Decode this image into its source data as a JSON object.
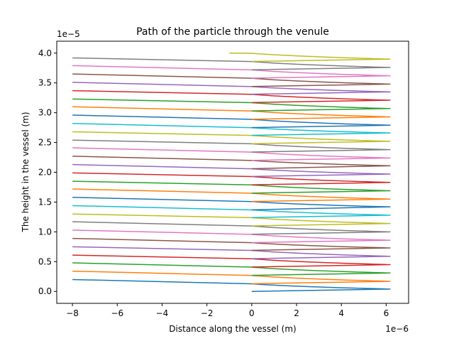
{
  "chart_data": {
    "type": "line",
    "title": "Path of the particle through the venule",
    "xlabel": "Distance along the vessel (m)",
    "ylabel": "The height in the vessel (m)",
    "x_offset_label": "1e−6",
    "y_offset_label": "1e−5",
    "xlim": [
      -8.7,
      7.0
    ],
    "ylim": [
      -0.2,
      4.2
    ],
    "x_ticks": [
      -8,
      -6,
      -4,
      -2,
      0,
      2,
      4,
      6
    ],
    "x_tick_labels": [
      "−8",
      "−6",
      "−4",
      "−2",
      "0",
      "2",
      "4",
      "6"
    ],
    "y_ticks": [
      0.0,
      0.5,
      1.0,
      1.5,
      2.0,
      2.5,
      3.0,
      3.5,
      4.0
    ],
    "y_tick_labels": [
      "0.0",
      "0.5",
      "1.0",
      "1.5",
      "2.0",
      "2.5",
      "3.0",
      "3.5",
      "4.0"
    ],
    "grid": false,
    "legend": "none",
    "cycle_colors": [
      "#1f77b4",
      "#ff7f0e",
      "#2ca02c",
      "#d62728",
      "#9467bd",
      "#8c564b",
      "#e377c2",
      "#7f7f7f",
      "#bcbd22",
      "#17becf"
    ],
    "pass_x_range": [
      0.0,
      6.4
    ],
    "return_x_range": [
      6.4,
      -8.0
    ],
    "series": [
      {
        "passes": [
          [
            0.0,
            0.04,
            0.13
          ],
          [
            0.13,
            0.2
          ]
        ]
      },
      {
        "passes": [
          [
            0.13,
            0.17,
            0.27
          ],
          [
            0.27,
            0.34
          ]
        ]
      },
      {
        "passes": [
          [
            0.27,
            0.31,
            0.41
          ],
          [
            0.41,
            0.48
          ]
        ]
      },
      {
        "passes": [
          [
            0.41,
            0.45,
            0.55
          ],
          [
            0.55,
            0.61
          ]
        ]
      },
      {
        "passes": [
          [
            0.55,
            0.59,
            0.69
          ],
          [
            0.69,
            0.75
          ]
        ]
      },
      {
        "passes": [
          [
            0.69,
            0.73,
            0.82
          ],
          [
            0.82,
            0.89
          ]
        ]
      },
      {
        "passes": [
          [
            0.82,
            0.86,
            0.96
          ],
          [
            0.96,
            1.03
          ]
        ]
      },
      {
        "passes": [
          [
            0.96,
            1.0,
            1.1
          ],
          [
            1.1,
            1.17
          ]
        ]
      },
      {
        "passes": [
          [
            1.1,
            1.14,
            1.24
          ],
          [
            1.24,
            1.3
          ]
        ]
      },
      {
        "passes": [
          [
            1.24,
            1.28,
            1.37
          ],
          [
            1.37,
            1.44
          ]
        ]
      },
      {
        "passes": [
          [
            1.37,
            1.42,
            1.51
          ],
          [
            1.51,
            1.58
          ]
        ]
      },
      {
        "passes": [
          [
            1.51,
            1.55,
            1.65
          ],
          [
            1.65,
            1.72
          ]
        ]
      },
      {
        "passes": [
          [
            1.65,
            1.69,
            1.79
          ],
          [
            1.79,
            1.85
          ]
        ]
      },
      {
        "passes": [
          [
            1.79,
            1.83,
            1.93
          ],
          [
            1.93,
            1.99
          ]
        ]
      },
      {
        "passes": [
          [
            1.93,
            1.97,
            2.06
          ],
          [
            2.06,
            2.13
          ]
        ]
      },
      {
        "passes": [
          [
            2.06,
            2.11,
            2.2
          ],
          [
            2.2,
            2.27
          ]
        ]
      },
      {
        "passes": [
          [
            2.2,
            2.24,
            2.34
          ],
          [
            2.34,
            2.41
          ]
        ]
      },
      {
        "passes": [
          [
            2.34,
            2.38,
            2.48
          ],
          [
            2.48,
            2.54
          ]
        ]
      },
      {
        "passes": [
          [
            2.48,
            2.52,
            2.62
          ],
          [
            2.62,
            2.68
          ]
        ]
      },
      {
        "passes": [
          [
            2.62,
            2.66,
            2.75
          ],
          [
            2.75,
            2.82
          ]
        ]
      },
      {
        "passes": [
          [
            2.75,
            2.79,
            2.89
          ],
          [
            2.89,
            2.96
          ]
        ]
      },
      {
        "passes": [
          [
            2.89,
            2.93,
            3.03
          ],
          [
            3.03,
            3.1
          ]
        ]
      },
      {
        "passes": [
          [
            3.03,
            3.07,
            3.17
          ],
          [
            3.17,
            3.23
          ]
        ]
      },
      {
        "passes": [
          [
            3.17,
            3.21,
            3.31
          ],
          [
            3.31,
            3.37
          ]
        ]
      },
      {
        "passes": [
          [
            3.31,
            3.35,
            3.44
          ],
          [
            3.44,
            3.51
          ]
        ]
      },
      {
        "passes": [
          [
            3.44,
            3.48,
            3.58
          ],
          [
            3.58,
            3.65
          ]
        ]
      },
      {
        "passes": [
          [
            3.58,
            3.62,
            3.72
          ],
          [
            3.72,
            3.79
          ]
        ]
      },
      {
        "passes": [
          [
            3.72,
            3.76,
            3.86
          ],
          [
            3.86,
            3.92
          ]
        ]
      },
      {
        "passes": [
          [
            3.86,
            3.9,
            4.0
          ],
          [
            4.0,
            4.0
          ]
        ],
        "end_x": -1.0
      }
    ]
  }
}
